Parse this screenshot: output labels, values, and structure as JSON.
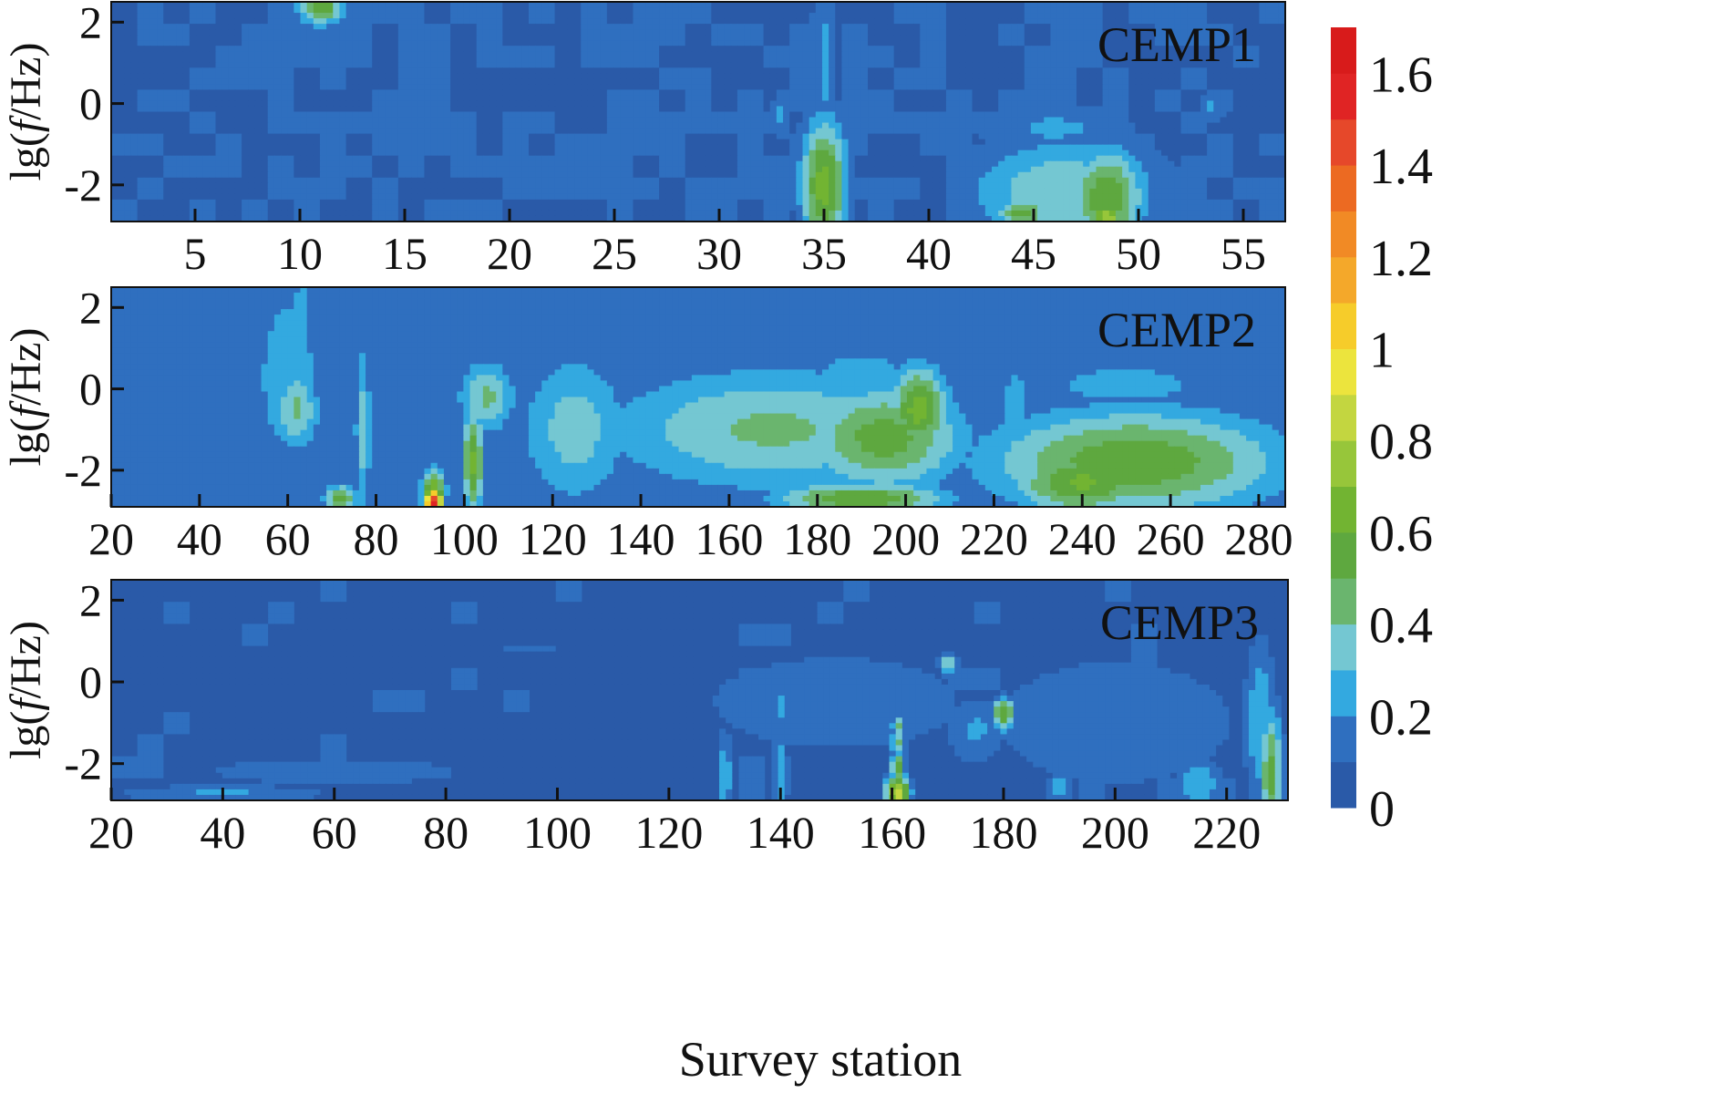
{
  "chart_data": [
    {
      "type": "heatmap",
      "title": "CEMP1",
      "ylabel_prefix": "lg(",
      "ylabel_var": "f",
      "ylabel_suffix": "/Hz)",
      "xlim": [
        1,
        57
      ],
      "ylim": [
        -2.9,
        2.5
      ],
      "xticks": [
        5,
        10,
        15,
        20,
        25,
        30,
        35,
        40,
        45,
        50,
        55
      ],
      "yticks": [
        2,
        0,
        -2
      ],
      "base_value": 0.1,
      "features": [
        {
          "x": 35,
          "y": -2.0,
          "sx": 0.8,
          "sy": 1.2,
          "v": 0.65
        },
        {
          "x": 35,
          "y": 1.0,
          "sx": 0.5,
          "sy": 2.2,
          "v": 0.22
        },
        {
          "x": 11,
          "y": 2.4,
          "sx": 0.8,
          "sy": 0.35,
          "v": 0.6
        },
        {
          "x": 46.5,
          "y": -2.2,
          "sx": 3.5,
          "sy": 1.0,
          "v": 0.4
        },
        {
          "x": 48.5,
          "y": -2.3,
          "sx": 1.3,
          "sy": 0.9,
          "v": 0.6
        },
        {
          "x": 48.5,
          "y": -2.8,
          "sx": 0.6,
          "sy": 0.3,
          "v": 0.78
        },
        {
          "x": 44.5,
          "y": -2.7,
          "sx": 1.0,
          "sy": 0.3,
          "v": 0.55
        },
        {
          "x": 46,
          "y": -0.6,
          "sx": 3.0,
          "sy": 0.5,
          "v": 0.22
        },
        {
          "x": 33,
          "y": -0.3,
          "sx": 0.4,
          "sy": 0.5,
          "v": 0.22
        },
        {
          "x": 53.5,
          "y": -0.1,
          "sx": 0.5,
          "sy": 0.3,
          "v": 0.22
        }
      ]
    },
    {
      "type": "heatmap",
      "title": "CEMP2",
      "ylabel_prefix": "lg(",
      "ylabel_var": "f",
      "ylabel_suffix": "/Hz)",
      "xlim": [
        20,
        286
      ],
      "ylim": [
        -2.9,
        2.5
      ],
      "xticks": [
        20,
        40,
        60,
        80,
        100,
        120,
        140,
        160,
        180,
        200,
        220,
        240,
        260,
        280
      ],
      "yticks": [
        2,
        0,
        -2
      ],
      "base_value": 0.15,
      "features": [
        {
          "x": 60,
          "y": 0.3,
          "sx": 6.0,
          "sy": 1.8,
          "v": 0.3
        },
        {
          "x": 62,
          "y": -0.5,
          "sx": 4.0,
          "sy": 0.8,
          "v": 0.42
        },
        {
          "x": 63,
          "y": 1.7,
          "sx": 3.0,
          "sy": 1.2,
          "v": 0.25
        },
        {
          "x": 77,
          "y": -1.0,
          "sx": 1.5,
          "sy": 1.8,
          "v": 0.35
        },
        {
          "x": 93,
          "y": -2.8,
          "sx": 1.5,
          "sy": 0.25,
          "v": 1.6
        },
        {
          "x": 93,
          "y": -2.5,
          "sx": 2.0,
          "sy": 0.4,
          "v": 0.7
        },
        {
          "x": 102,
          "y": -1.8,
          "sx": 1.8,
          "sy": 1.0,
          "v": 0.62
        },
        {
          "x": 105,
          "y": -0.2,
          "sx": 5.0,
          "sy": 0.7,
          "v": 0.42
        },
        {
          "x": 72,
          "y": -2.7,
          "sx": 3.0,
          "sy": 0.25,
          "v": 0.55
        },
        {
          "x": 125,
          "y": -1.0,
          "sx": 10.0,
          "sy": 1.5,
          "v": 0.35
        },
        {
          "x": 170,
          "y": -1.0,
          "sx": 30.0,
          "sy": 1.2,
          "v": 0.42
        },
        {
          "x": 195,
          "y": -1.2,
          "sx": 14.0,
          "sy": 1.0,
          "v": 0.55
        },
        {
          "x": 203,
          "y": -0.5,
          "sx": 5.0,
          "sy": 0.8,
          "v": 0.65
        },
        {
          "x": 190,
          "y": -2.7,
          "sx": 15.0,
          "sy": 0.3,
          "v": 0.6
        },
        {
          "x": 190,
          "y": 0.4,
          "sx": 20.0,
          "sy": 0.8,
          "v": 0.22
        },
        {
          "x": 252,
          "y": -1.8,
          "sx": 26.0,
          "sy": 1.0,
          "v": 0.58
        },
        {
          "x": 240,
          "y": -2.3,
          "sx": 12.0,
          "sy": 0.6,
          "v": 0.62
        },
        {
          "x": 250,
          "y": 0.1,
          "sx": 30.0,
          "sy": 0.8,
          "v": 0.22
        },
        {
          "x": 225,
          "y": -1.0,
          "sx": 3.0,
          "sy": 1.5,
          "v": 0.3
        }
      ]
    },
    {
      "type": "heatmap",
      "title": "CEMP3",
      "ylabel_prefix": "lg(",
      "ylabel_var": "f",
      "ylabel_suffix": "/Hz)",
      "xlim": [
        20,
        231
      ],
      "ylim": [
        -2.9,
        2.5
      ],
      "xticks": [
        20,
        40,
        60,
        80,
        100,
        120,
        140,
        160,
        180,
        200,
        220
      ],
      "yticks": [
        2,
        0,
        -2
      ],
      "base_value": 0.06,
      "features": [
        {
          "x": 60,
          "y": -2.2,
          "sx": 30.0,
          "sy": 0.4,
          "v": 0.13
        },
        {
          "x": 40,
          "y": -2.75,
          "sx": 14.0,
          "sy": 0.18,
          "v": 0.22
        },
        {
          "x": 150,
          "y": -0.5,
          "sx": 30.0,
          "sy": 1.5,
          "v": 0.13
        },
        {
          "x": 200,
          "y": -1.0,
          "sx": 25.0,
          "sy": 1.8,
          "v": 0.14
        },
        {
          "x": 161,
          "y": -2.7,
          "sx": 1.5,
          "sy": 0.3,
          "v": 0.9
        },
        {
          "x": 161,
          "y": -2.1,
          "sx": 1.0,
          "sy": 0.3,
          "v": 0.55
        },
        {
          "x": 161,
          "y": -1.5,
          "sx": 1.0,
          "sy": 0.25,
          "v": 0.45
        },
        {
          "x": 161,
          "y": -1.1,
          "sx": 0.8,
          "sy": 0.2,
          "v": 0.45
        },
        {
          "x": 180,
          "y": -0.8,
          "sx": 1.5,
          "sy": 0.3,
          "v": 0.6
        },
        {
          "x": 170,
          "y": 0.45,
          "sx": 1.2,
          "sy": 0.2,
          "v": 0.4
        },
        {
          "x": 130,
          "y": -2.3,
          "sx": 1.0,
          "sy": 0.8,
          "v": 0.3
        },
        {
          "x": 140,
          "y": -2.3,
          "sx": 1.0,
          "sy": 0.8,
          "v": 0.3
        },
        {
          "x": 140,
          "y": -0.6,
          "sx": 0.8,
          "sy": 0.5,
          "v": 0.25
        },
        {
          "x": 228,
          "y": -2.3,
          "sx": 1.5,
          "sy": 1.2,
          "v": 0.55
        },
        {
          "x": 226,
          "y": -1.0,
          "sx": 2.0,
          "sy": 1.5,
          "v": 0.3
        },
        {
          "x": 215,
          "y": -2.5,
          "sx": 3.0,
          "sy": 0.5,
          "v": 0.3
        },
        {
          "x": 175,
          "y": -1.2,
          "sx": 4.0,
          "sy": 0.6,
          "v": 0.22
        },
        {
          "x": 190,
          "y": -2.6,
          "sx": 2.0,
          "sy": 0.3,
          "v": 0.25
        },
        {
          "x": 95,
          "y": 0.8,
          "sx": 4.0,
          "sy": 0.1,
          "v": 0.2
        },
        {
          "x": 36,
          "y": 1.5,
          "sx": 8.0,
          "sy": 0.4,
          "v": 0.02
        }
      ]
    }
  ],
  "x_title": "Survey station",
  "colorbar": {
    "levels": [
      0,
      0.1,
      0.2,
      0.3,
      0.4,
      0.5,
      0.6,
      0.7,
      0.8,
      0.9,
      1.0,
      1.1,
      1.2,
      1.3,
      1.4,
      1.5,
      1.6,
      1.7
    ],
    "colors": [
      "#2a5aa8",
      "#2f6fbf",
      "#33a9e0",
      "#74c7d2",
      "#6ab56e",
      "#5ea83f",
      "#72b432",
      "#97c63a",
      "#c3d640",
      "#ece43d",
      "#f6cc2a",
      "#f4a82a",
      "#f18a25",
      "#ec6a22",
      "#e6482a",
      "#e02424",
      "#d81b1b"
    ],
    "tick_values": [
      0,
      0.2,
      0.4,
      0.6,
      0.8,
      1,
      1.2,
      1.4,
      1.6
    ],
    "tick_labels": [
      "0",
      "0.2",
      "0.4",
      "0.6",
      "0.8",
      "1",
      "1.2",
      "1.4",
      "1.6"
    ]
  }
}
